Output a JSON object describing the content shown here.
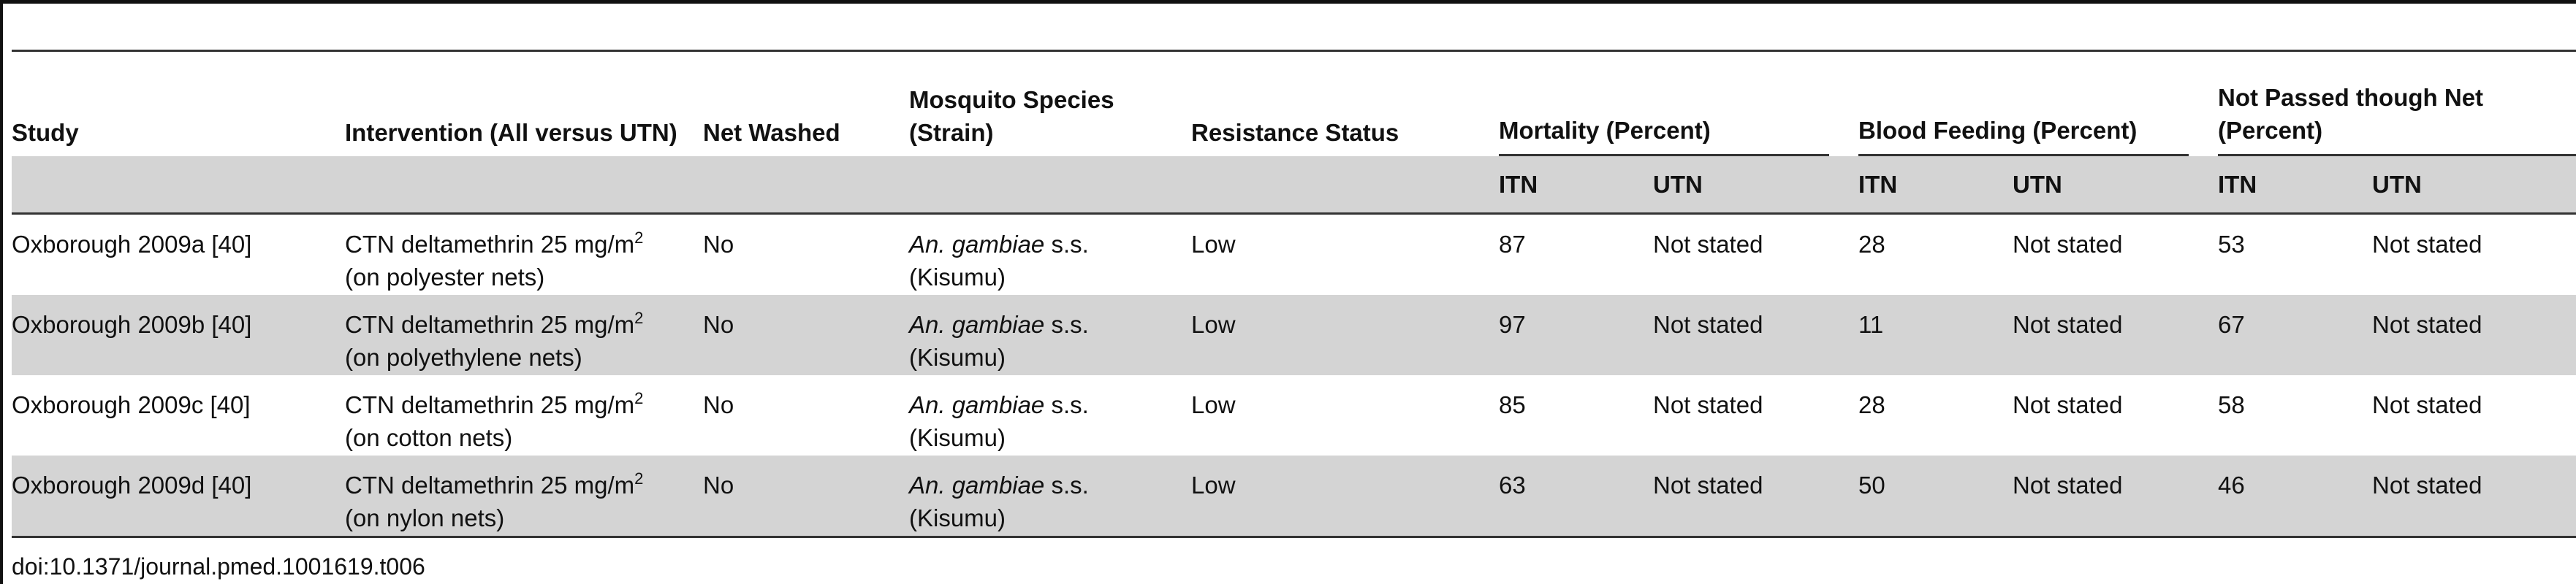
{
  "columns": {
    "study": "Study",
    "intervention": "Intervention (All versus UTN)",
    "net_washed": "Net Washed",
    "mosquito_species": "Mosquito Species (Strain)",
    "resistance_status": "Resistance Status",
    "mortality": "Mortality (Percent)",
    "blood_feeding": "Blood Feeding (Percent)",
    "not_passed": "Not Passed though Net (Percent)"
  },
  "subheaders": {
    "itn": "ITN",
    "utn": "UTN"
  },
  "rows": [
    {
      "study": "Oxborough 2009a [40]",
      "intervention_line1": "CTN deltamethrin 25 mg/m",
      "intervention_sup": "2",
      "intervention_line2": "(on polyester nets)",
      "net_washed": "No",
      "species_italic": "An. gambiae",
      "species_suffix": " s.s.",
      "strain": "(Kisumu)",
      "resistance": "Low",
      "mortality_itn": "87",
      "mortality_utn": "Not stated",
      "blood_itn": "28",
      "blood_utn": "Not stated",
      "notpassed_itn": "53",
      "notpassed_utn": "Not stated"
    },
    {
      "study": "Oxborough 2009b [40]",
      "intervention_line1": "CTN deltamethrin 25 mg/m",
      "intervention_sup": "2",
      "intervention_line2": "(on polyethylene nets)",
      "net_washed": "No",
      "species_italic": "An. gambiae",
      "species_suffix": " s.s.",
      "strain": "(Kisumu)",
      "resistance": "Low",
      "mortality_itn": "97",
      "mortality_utn": "Not stated",
      "blood_itn": "11",
      "blood_utn": "Not stated",
      "notpassed_itn": "67",
      "notpassed_utn": "Not stated"
    },
    {
      "study": "Oxborough 2009c [40]",
      "intervention_line1": "CTN deltamethrin 25 mg/m",
      "intervention_sup": "2",
      "intervention_line2": "(on cotton nets)",
      "net_washed": "No",
      "species_italic": "An. gambiae",
      "species_suffix": " s.s.",
      "strain": "(Kisumu)",
      "resistance": "Low",
      "mortality_itn": "85",
      "mortality_utn": "Not stated",
      "blood_itn": "28",
      "blood_utn": "Not stated",
      "notpassed_itn": "58",
      "notpassed_utn": "Not stated"
    },
    {
      "study": "Oxborough 2009d [40]",
      "intervention_line1": "CTN deltamethrin 25 mg/m",
      "intervention_sup": "2",
      "intervention_line2": "(on nylon nets)",
      "net_washed": "No",
      "species_italic": "An. gambiae",
      "species_suffix": " s.s.",
      "strain": "(Kisumu)",
      "resistance": "Low",
      "mortality_itn": "63",
      "mortality_utn": "Not stated",
      "blood_itn": "50",
      "blood_utn": "Not stated",
      "notpassed_itn": "46",
      "notpassed_utn": "Not stated"
    }
  ],
  "doi": "doi:10.1371/journal.pmed.1001619.t006"
}
